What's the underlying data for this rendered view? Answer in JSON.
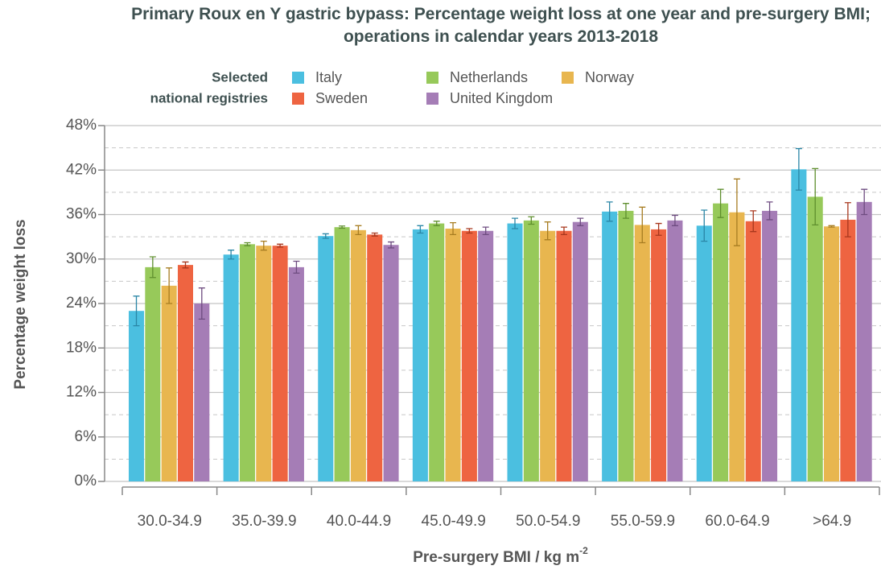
{
  "chart_data": {
    "type": "bar",
    "title": "Primary Roux en Y gastric bypass: Percentage weight loss at one year and pre-surgery BMI; operations in calendar years 2013-2018",
    "legend_title": [
      "Selected",
      "national registries"
    ],
    "xlabel": "Pre-surgery BMI / kg m",
    "xlabel_sup": "-2",
    "ylabel": "Percentage weight loss",
    "categories": [
      "30.0-34.9",
      "35.0-39.9",
      "40.0-44.9",
      "45.0-49.9",
      "50.0-54.9",
      "55.0-59.9",
      "60.0-64.9",
      ">64.9"
    ],
    "series": [
      {
        "name": "Italy",
        "color": "#4bbfe0",
        "error_color": "#2a86a6",
        "values": [
          23.0,
          30.6,
          33.1,
          34.0,
          34.8,
          36.4,
          34.5,
          42.1
        ],
        "errors": [
          2.0,
          0.6,
          0.3,
          0.5,
          0.7,
          1.3,
          2.1,
          2.8
        ]
      },
      {
        "name": "Netherlands",
        "color": "#97c95a",
        "error_color": "#5f8f2e",
        "values": [
          28.9,
          32.0,
          34.3,
          34.8,
          35.2,
          36.5,
          37.5,
          38.4
        ],
        "errors": [
          1.4,
          0.2,
          0.15,
          0.3,
          0.5,
          1.0,
          1.9,
          3.8
        ]
      },
      {
        "name": "Norway",
        "color": "#e8b64f",
        "error_color": "#a77d22",
        "values": [
          26.4,
          31.8,
          33.9,
          34.1,
          33.8,
          34.6,
          36.3,
          34.4
        ],
        "errors": [
          2.4,
          0.6,
          0.6,
          0.8,
          1.2,
          2.4,
          4.5,
          0.1
        ]
      },
      {
        "name": "Sweden",
        "color": "#ee6441",
        "error_color": "#a8371d",
        "values": [
          29.2,
          31.8,
          33.3,
          33.8,
          33.8,
          34.0,
          35.1,
          35.3
        ],
        "errors": [
          0.4,
          0.2,
          0.2,
          0.3,
          0.5,
          0.8,
          1.4,
          2.3
        ]
      },
      {
        "name": "United Kingdom",
        "color": "#a57db6",
        "error_color": "#6e4c80",
        "values": [
          24.0,
          28.9,
          31.9,
          33.8,
          35.0,
          35.2,
          36.5,
          37.7
        ],
        "errors": [
          2.1,
          0.8,
          0.4,
          0.5,
          0.5,
          0.7,
          1.2,
          1.7
        ]
      }
    ],
    "ylim": [
      0,
      48
    ],
    "yticks": [
      {
        "value": 0,
        "label": "0%"
      },
      {
        "value": 6,
        "label": "6%"
      },
      {
        "value": 12,
        "label": "12%"
      },
      {
        "value": 18,
        "label": "18%"
      },
      {
        "value": 24,
        "label": "24%"
      },
      {
        "value": 30,
        "label": "30%"
      },
      {
        "value": 36,
        "label": "36%"
      },
      {
        "value": 42,
        "label": "42%"
      },
      {
        "value": 48,
        "label": "48%"
      }
    ],
    "grid": true,
    "minor_grid": true
  }
}
